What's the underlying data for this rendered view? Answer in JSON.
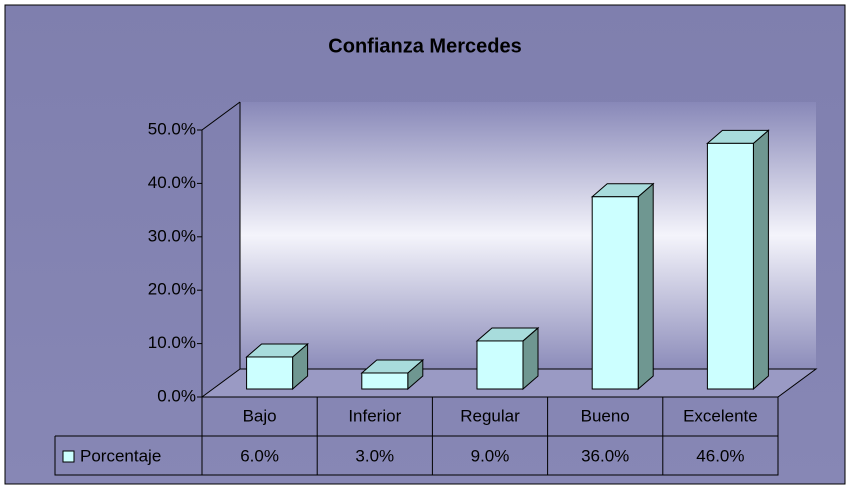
{
  "chart_data": {
    "type": "bar3d",
    "title": "Confianza  Mercedes",
    "categories": [
      "Bajo",
      "Inferior",
      "Regular",
      "Bueno",
      "Excelente"
    ],
    "series": [
      {
        "name": "Porcentaje",
        "color": "#ccffff",
        "values": [
          6,
          3,
          9,
          36,
          46
        ],
        "value_labels": [
          "6.0%",
          "3.0%",
          "9.0%",
          "36.0%",
          "46.0%"
        ]
      }
    ],
    "ylim": [
      0,
      50
    ],
    "yticks": [
      {
        "value": 0,
        "label": "0.0%"
      },
      {
        "value": 10,
        "label": "10.0%"
      },
      {
        "value": 20,
        "label": "20.0%"
      },
      {
        "value": 30,
        "label": "30.0%"
      },
      {
        "value": 40,
        "label": "40.0%"
      },
      {
        "value": 50,
        "label": "50.0%"
      }
    ]
  }
}
